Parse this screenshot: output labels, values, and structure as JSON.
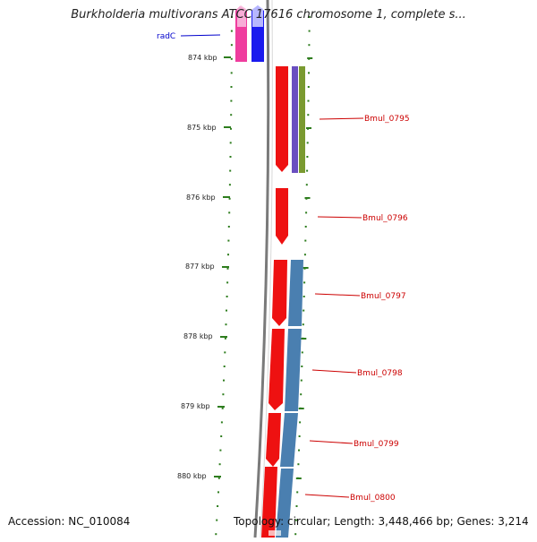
{
  "title": "Burkholderia multivorans ATCC 17616 chromosome 1, complete s...",
  "footer": {
    "accession": "Accession: NC_010084",
    "topology": "Topology: circular; Length: 3,448,466 bp; Genes: 3,214"
  },
  "colors": {
    "backbone": "#7a7a7a",
    "tick": "#2e7d1e",
    "cds_red": "#ee1111",
    "gene_pink": "#ee3399",
    "gene_blue": "#1a1aee",
    "blue_feature": "#4a7fb0",
    "purple_feature": "#6a4fc0",
    "olive_feature": "#7a9a30",
    "label_red": "#cc0000",
    "label_blue": "#0000cc"
  },
  "kbp_labels": [
    "874 kbp",
    "875 kbp",
    "876 kbp",
    "877 kbp",
    "878 kbp",
    "879 kbp",
    "880 kbp"
  ],
  "gene_labels": [
    {
      "text": "radC",
      "color": "blue"
    },
    {
      "text": "Bmul_0795",
      "color": "red"
    },
    {
      "text": "Bmul_0796",
      "color": "red"
    },
    {
      "text": "Bmul_0797",
      "color": "red"
    },
    {
      "text": "Bmul_0798",
      "color": "red"
    },
    {
      "text": "Bmul_0799",
      "color": "red"
    },
    {
      "text": "Bmul_0800",
      "color": "red"
    }
  ]
}
